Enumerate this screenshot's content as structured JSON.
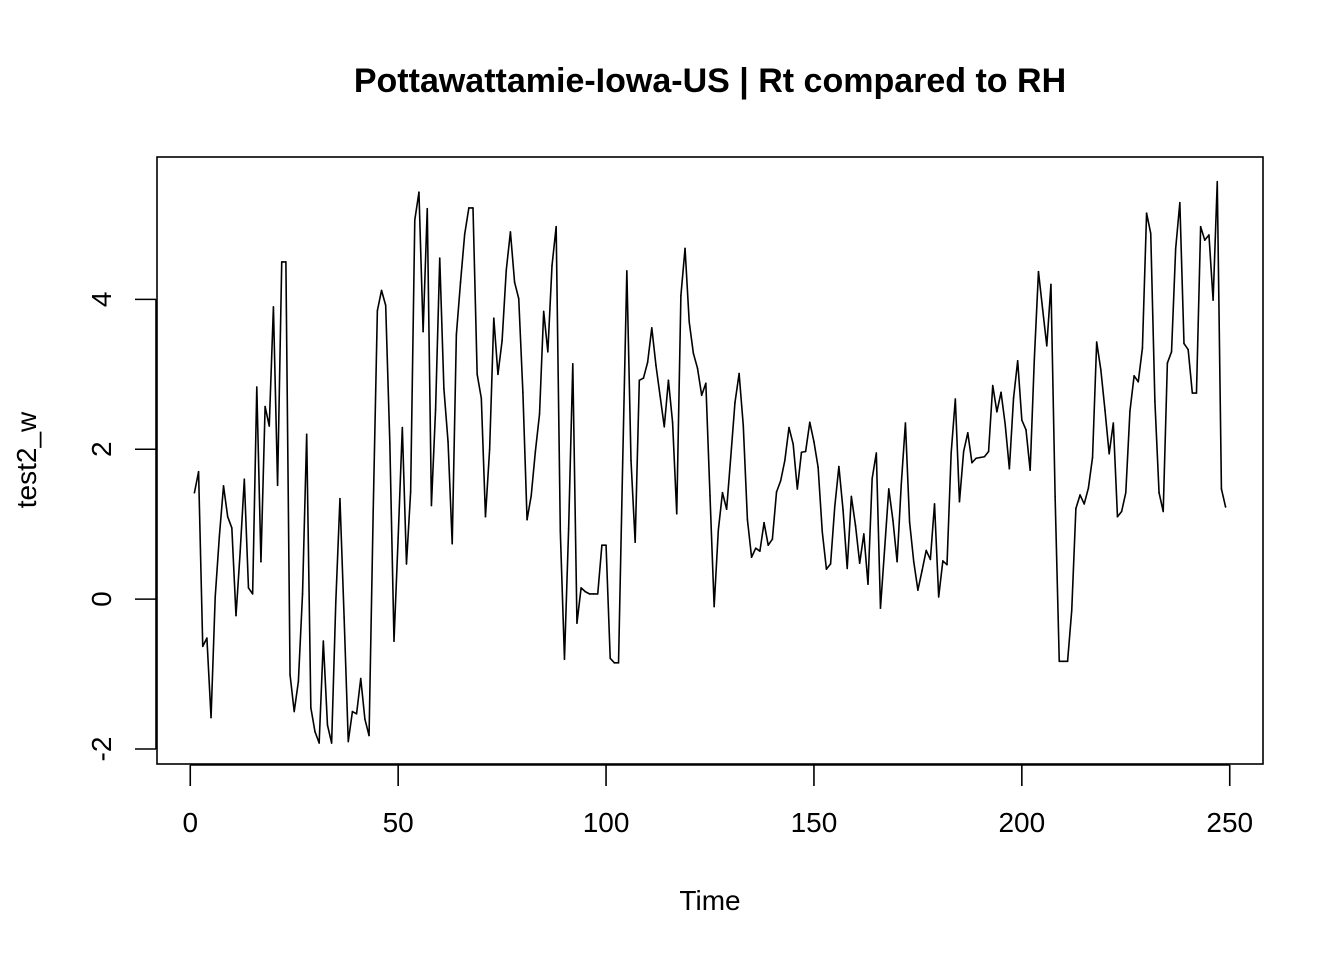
{
  "chart_data": {
    "type": "line",
    "title": "Pottawattamie-Iowa-US | Rt compared to RH",
    "xlabel": "Time",
    "ylabel": "test2_w",
    "xlim": [
      -8,
      258
    ],
    "ylim": [
      -2.2,
      5.9
    ],
    "x_ticks": [
      0,
      50,
      100,
      150,
      200,
      250
    ],
    "y_ticks": [
      -2,
      0,
      2,
      4
    ],
    "grid": false,
    "legend": "none",
    "line_color": "#000000",
    "x_start": 1,
    "series": [
      {
        "values": [
          1.42,
          1.7,
          -0.63,
          -0.52,
          -1.58,
          0.03,
          0.84,
          1.51,
          1.1,
          0.95,
          -0.22,
          0.63,
          1.6,
          0.15,
          0.07,
          2.83,
          0.5,
          2.57,
          2.31,
          3.9,
          1.52,
          4.5,
          4.5,
          -1.01,
          -1.5,
          -1.1,
          0.07,
          2.2,
          -1.45,
          -1.77,
          -1.92,
          -0.56,
          -1.68,
          -1.92,
          -0.04,
          1.34,
          -0.24,
          -1.9,
          -1.5,
          -1.53,
          -1.06,
          -1.6,
          -1.82,
          1.18,
          3.85,
          4.12,
          3.92,
          2.08,
          -0.56,
          0.82,
          2.29,
          0.47,
          1.43,
          5.06,
          5.43,
          3.57,
          5.21,
          1.25,
          2.53,
          4.55,
          2.81,
          2.1,
          0.74,
          3.53,
          4.23,
          4.87,
          5.22,
          5.22,
          3.0,
          2.68,
          1.1,
          2.0,
          3.75,
          3.0,
          3.45,
          4.39,
          4.9,
          4.23,
          4.01,
          2.76,
          1.06,
          1.38,
          1.97,
          2.47,
          3.84,
          3.3,
          4.45,
          4.97,
          0.9,
          -0.8,
          0.94,
          3.14,
          -0.32,
          0.15,
          0.1,
          0.07,
          0.07,
          0.07,
          0.72,
          0.72,
          -0.79,
          -0.85,
          -0.85,
          1.82,
          4.38,
          1.85,
          0.76,
          2.92,
          2.95,
          3.16,
          3.62,
          3.12,
          2.71,
          2.3,
          2.92,
          2.36,
          1.14,
          4.05,
          4.68,
          3.7,
          3.28,
          3.08,
          2.72,
          2.88,
          1.38,
          -0.1,
          0.92,
          1.42,
          1.2,
          1.9,
          2.62,
          3.01,
          2.32,
          1.06,
          0.56,
          0.68,
          0.64,
          1.02,
          0.72,
          0.8,
          1.43,
          1.58,
          1.85,
          2.29,
          2.07,
          1.47,
          1.96,
          1.97,
          2.36,
          2.1,
          1.76,
          0.9,
          0.4,
          0.47,
          1.23,
          1.77,
          1.19,
          0.41,
          1.37,
          0.98,
          0.48,
          0.87,
          0.2,
          1.61,
          1.95,
          -0.12,
          0.67,
          1.47,
          1.05,
          0.5,
          1.53,
          2.35,
          1.03,
          0.5,
          0.12,
          0.38,
          0.65,
          0.53,
          1.27,
          0.03,
          0.51,
          0.46,
          1.95,
          2.67,
          1.3,
          1.97,
          2.22,
          1.82,
          1.88,
          1.89,
          1.9,
          1.97,
          2.85,
          2.5,
          2.76,
          2.33,
          1.74,
          2.68,
          3.18,
          2.39,
          2.26,
          1.72,
          3.2,
          4.37,
          3.87,
          3.38,
          4.2,
          1.37,
          -0.83,
          -0.83,
          -0.83,
          -0.15,
          1.21,
          1.39,
          1.27,
          1.48,
          1.89,
          3.43,
          3.06,
          2.52,
          1.94,
          2.35,
          1.1,
          1.17,
          1.42,
          2.51,
          2.98,
          2.9,
          3.35,
          5.15,
          4.88,
          2.64,
          1.42,
          1.17,
          3.15,
          3.3,
          4.68,
          5.29,
          3.41,
          3.33,
          2.75,
          2.75,
          4.97,
          4.79,
          4.86,
          3.99,
          5.57,
          1.47,
          1.23
        ]
      }
    ]
  }
}
